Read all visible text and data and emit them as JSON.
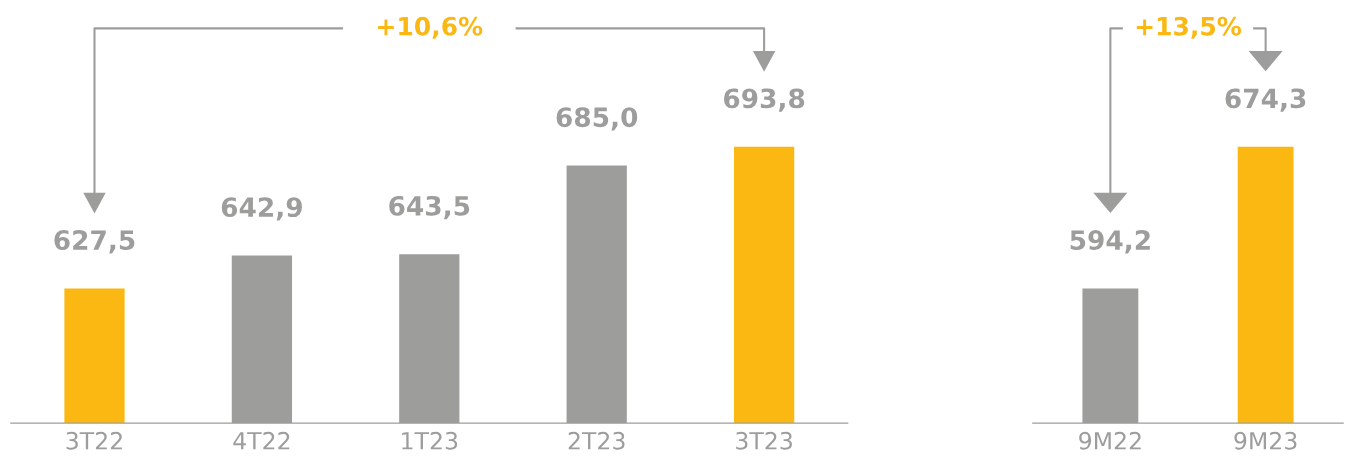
{
  "chart_data": [
    {
      "type": "bar",
      "categories": [
        "3T22",
        "4T22",
        "1T23",
        "2T23",
        "3T23"
      ],
      "values": [
        627.5,
        642.9,
        643.5,
        685.0,
        693.8
      ],
      "colors": [
        "#fbb813",
        "#9d9d9c",
        "#9d9d9c",
        "#9d9d9c",
        "#fbb813"
      ],
      "value_labels": [
        "627,5",
        "642,9",
        "643,5",
        "685,0",
        "693,8"
      ],
      "tick_labels": "x",
      "annotations": [
        "+10,6%"
      ]
    },
    {
      "type": "bar",
      "categories": [
        "9M22",
        "9M23"
      ],
      "values": [
        594.2,
        674.3
      ],
      "colors": [
        "#9d9d9c",
        "#fbb813"
      ],
      "value_labels": [
        "594,2",
        "674,3"
      ],
      "tick_labels": "x",
      "annotations": [
        "+13,5%"
      ]
    }
  ]
}
